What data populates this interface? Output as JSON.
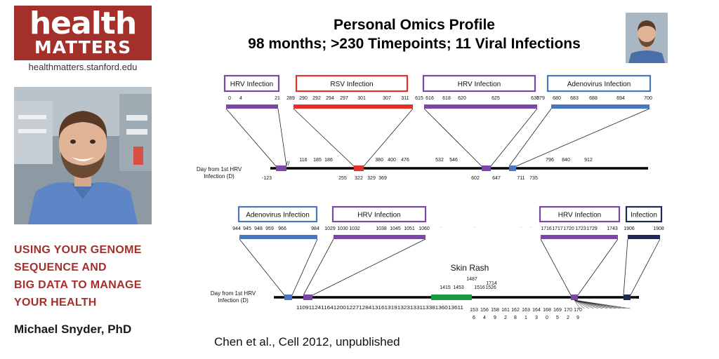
{
  "sidebar": {
    "logo": {
      "line1": "health",
      "line2": "MATTERS"
    },
    "site_url": "healthmatters.stanford.edu",
    "tagline": [
      "USING YOUR GENOME",
      "SEQUENCE AND",
      "BIG DATA TO MANAGE",
      "YOUR HEALTH"
    ],
    "author": "Michael Snyder, PhD"
  },
  "slide": {
    "title_line1": "Personal Omics Profile",
    "title_line2": "98 months; >230 Timepoints; 11 Viral Infections",
    "citation": "Chen et al., Cell 2012, unpublished"
  },
  "diagram": {
    "colors": {
      "hrv": "#7b48a8",
      "rsv": "#e8302a",
      "adeno": "#4a78c0",
      "dark": "#1f2a55",
      "skin": "#1b9a45",
      "other": "#b07a3a"
    },
    "axis_label_line1": "Day from 1st HRV",
    "axis_label_line2": "Infection (D)",
    "skin_rash_label": "Skin Rash",
    "top_row": {
      "boxes": [
        {
          "label": "HRV Infection",
          "type": "hrv",
          "ticks": [
            "0",
            "4",
            "21"
          ]
        },
        {
          "label": "RSV Infection",
          "type": "rsv",
          "ticks": [
            "289",
            "290",
            "292",
            "294",
            "297",
            "301",
            "307",
            "311"
          ]
        },
        {
          "label": "HRV Infection",
          "type": "hrv",
          "ticks": [
            "615",
            "616",
            "618",
            "620",
            "625",
            "630"
          ]
        },
        {
          "label": "Adenovirus Infection",
          "type": "adeno",
          "ticks": [
            "679",
            "680",
            "683",
            "688",
            "694",
            "700"
          ]
        }
      ],
      "above_labels": [
        "116",
        "185",
        "186",
        "380",
        "400",
        "476",
        "532",
        "546",
        "796",
        "840",
        "912"
      ],
      "below_labels": [
        "-123",
        "255",
        "322",
        "329",
        "369",
        "602",
        "647",
        "711",
        "735"
      ]
    },
    "bottom_row": {
      "boxes": [
        {
          "label": "Adenovirus Infection",
          "type": "adeno",
          "ticks": [
            "944",
            "945",
            "948",
            "959",
            "966"
          ]
        },
        {
          "label": "HRV Infection",
          "type": "hrv",
          "ticks": [
            "984",
            "1029",
            "1030",
            "1032",
            "1038",
            "1045",
            "1051",
            "1060"
          ]
        },
        {
          "label": "HRV Infection",
          "type": "hrv",
          "ticks": [
            "1716",
            "1717",
            "1720",
            "1723",
            "1729",
            "1743"
          ]
        },
        {
          "label": "Infection",
          "type": "dark",
          "ticks": [
            "1906",
            "1908"
          ]
        }
      ],
      "above_labels": [
        "1415",
        "1453",
        "1487",
        "1516",
        "1526",
        "1714"
      ],
      "below_row1": "11091124116412001227128413161319132313311338136013611",
      "below_row2": [
        "153",
        "156",
        "158",
        "161",
        "162",
        "163",
        "164",
        "168",
        "169",
        "170",
        "170"
      ],
      "below_row3": [
        "6",
        "4",
        "9",
        "2",
        "8",
        "1",
        "3",
        "0",
        "5",
        "2",
        "9"
      ]
    }
  }
}
